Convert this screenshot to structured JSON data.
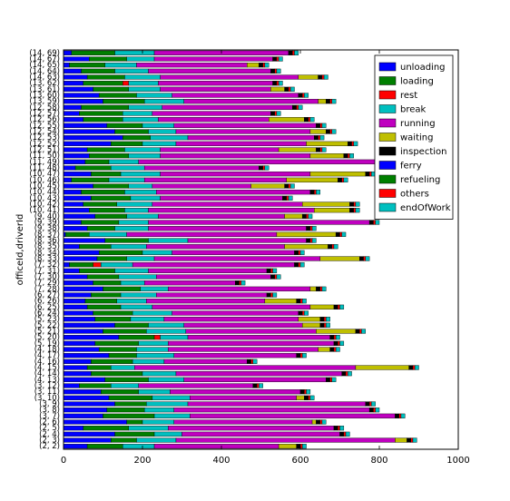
{
  "chart_data": {
    "type": "stacked-barh",
    "y_label": "officeId,driverId",
    "categories": [
      "(2, 2)",
      "(2, 3)",
      "(2, 4)",
      "(2, 5)",
      "(2, 6)",
      "(3, 7)",
      "(3, 8)",
      "(3, 9)",
      "(3, 10)",
      "(3, 11)",
      "(3, 12)",
      "(4, 13)",
      "(4, 14)",
      "(4, 15)",
      "(4, 16)",
      "(4, 17)",
      "(4, 18)",
      "(5, 19)",
      "(5, 20)",
      "(5, 21)",
      "(5, 22)",
      "(5, 23)",
      "(6, 24)",
      "(6, 25)",
      "(6, 26)",
      "(6, 27)",
      "(7, 28)",
      "(7, 29)",
      "(7, 30)",
      "(7, 31)",
      "(7, 32)",
      "(8, 33)",
      "(8, 34)",
      "(8, 35)",
      "(8, 36)",
      "(8, 37)",
      "(9, 38)",
      "(9, 39)",
      "(9, 40)",
      "(10, 41)",
      "(10, 42)",
      "(10, 43)",
      "(10, 44)",
      "(10, 45)",
      "(10, 46)",
      "(10, 47)",
      "(11, 48)",
      "(11, 49)",
      "(11, 50)",
      "(12, 51)",
      "(12, 52)",
      "(12, 53)",
      "(12, 54)",
      "(12, 55)",
      "(12, 56)",
      "(12, 57)",
      "(12, 58)",
      "(13, 59)",
      "(13, 60)",
      "(13, 61)",
      "(13, 62)",
      "(14, 63)",
      "(14, 64)",
      "(14, 65)",
      "(14, 67)",
      "(14, 69)"
    ],
    "xlim": [
      0,
      1000
    ],
    "xticks": [
      0,
      200,
      400,
      600,
      800,
      1000
    ],
    "legend": "upper right",
    "series": [
      {
        "name": "unloading",
        "color": "#0000ff",
        "values": [
          60,
          120,
          130,
          50,
          160,
          100,
          110,
          130,
          115,
          95,
          40,
          105,
          70,
          60,
          70,
          115,
          90,
          80,
          140,
          100,
          130,
          80,
          75,
          60,
          55,
          70,
          100,
          75,
          60,
          40,
          15,
          85,
          90,
          40,
          105,
          5,
          60,
          45,
          80,
          65,
          50,
          70,
          45,
          75,
          20,
          70,
          30,
          55,
          65,
          60,
          120,
          150,
          130,
          110,
          50,
          40,
          45,
          100,
          90,
          75,
          50,
          60,
          45,
          15,
          65,
          20
        ]
      },
      {
        "name": "loading",
        "color": "#007f00",
        "values": [
          90,
          65,
          100,
          115,
          40,
          130,
          95,
          80,
          110,
          95,
          80,
          110,
          130,
          60,
          105,
          70,
          95,
          110,
          90,
          110,
          85,
          90,
          100,
          85,
          80,
          75,
          95,
          70,
          80,
          90,
          60,
          75,
          110,
          80,
          110,
          60,
          70,
          95,
          80,
          90,
          85,
          100,
          110,
          90,
          95,
          75,
          90,
          60,
          100,
          95,
          80,
          70,
          85,
          90,
          100,
          110,
          120,
          105,
          95,
          90,
          100,
          95,
          85,
          90,
          95,
          110
        ]
      },
      {
        "name": "rest",
        "color": "#ff0000",
        "values": [
          0,
          0,
          0,
          0,
          0,
          0,
          0,
          0,
          0,
          0,
          0,
          0,
          0,
          0,
          0,
          0,
          0,
          0,
          15,
          0,
          0,
          0,
          0,
          0,
          0,
          0,
          0,
          0,
          0,
          0,
          20,
          0,
          0,
          0,
          0,
          0,
          0,
          0,
          0,
          0,
          0,
          0,
          0,
          0,
          0,
          0,
          0,
          0,
          0,
          0,
          0,
          0,
          0,
          0,
          0,
          0,
          0,
          0,
          0,
          0,
          15,
          0,
          0,
          0,
          0,
          0
        ]
      },
      {
        "name": "break",
        "color": "#00bfbf",
        "values": [
          80,
          100,
          70,
          100,
          80,
          90,
          75,
          105,
          95,
          80,
          70,
          90,
          85,
          60,
          80,
          95,
          80,
          75,
          70,
          100,
          90,
          85,
          100,
          80,
          75,
          90,
          70,
          60,
          95,
          85,
          80,
          70,
          75,
          90,
          100,
          95,
          85,
          75,
          80,
          60,
          90,
          75,
          80,
          60,
          90,
          100,
          85,
          75,
          80,
          90,
          85,
          95,
          70,
          80,
          90,
          75,
          85,
          100,
          90,
          80,
          75,
          90,
          85,
          80,
          70,
          100
        ]
      },
      {
        "name": "running",
        "color": "#bf00bf",
        "values": [
          315,
          555,
          400,
          420,
          350,
          520,
          495,
          450,
          270,
          330,
          290,
          360,
          420,
          560,
          210,
          310,
          380,
          420,
          360,
          330,
          300,
          340,
          320,
          400,
          300,
          280,
          360,
          230,
          290,
          300,
          410,
          420,
          310,
          350,
          300,
          380,
          400,
          560,
          320,
          420,
          380,
          310,
          390,
          250,
          360,
          380,
          290,
          600,
          380,
          300,
          330,
          320,
          340,
          360,
          280,
          300,
          330,
          340,
          320,
          280,
          290,
          350,
          310,
          280,
          300,
          340
        ]
      },
      {
        "name": "waiting",
        "color": "#bfbf00",
        "values": [
          45,
          30,
          0,
          0,
          10,
          0,
          0,
          0,
          20,
          0,
          0,
          0,
          0,
          135,
          0,
          0,
          30,
          0,
          0,
          100,
          45,
          55,
          0,
          60,
          80,
          0,
          15,
          0,
          0,
          0,
          0,
          100,
          0,
          110,
          0,
          150,
          0,
          0,
          45,
          90,
          120,
          0,
          0,
          85,
          130,
          140,
          0,
          0,
          85,
          95,
          105,
          0,
          40,
          0,
          90,
          0,
          0,
          20,
          0,
          35,
          0,
          50,
          0,
          30,
          0,
          0
        ]
      },
      {
        "name": "inspection",
        "color": "#000000",
        "values": [
          10,
          10,
          10,
          10,
          10,
          10,
          10,
          10,
          10,
          10,
          10,
          10,
          10,
          10,
          10,
          10,
          10,
          10,
          10,
          10,
          10,
          10,
          10,
          10,
          10,
          10,
          10,
          10,
          10,
          10,
          10,
          10,
          10,
          10,
          10,
          10,
          10,
          10,
          10,
          10,
          10,
          10,
          10,
          10,
          10,
          10,
          10,
          10,
          10,
          10,
          10,
          10,
          10,
          10,
          10,
          10,
          10,
          10,
          10,
          10,
          10,
          10,
          10,
          10,
          10,
          10
        ]
      },
      {
        "name": "ferry",
        "color": "#0000ff",
        "values": [
          0,
          0,
          0,
          0,
          0,
          0,
          0,
          0,
          0,
          0,
          0,
          0,
          0,
          0,
          0,
          0,
          0,
          0,
          0,
          0,
          0,
          0,
          0,
          0,
          0,
          0,
          0,
          0,
          0,
          0,
          0,
          0,
          0,
          0,
          0,
          0,
          0,
          0,
          0,
          0,
          0,
          0,
          0,
          0,
          0,
          0,
          0,
          0,
          0,
          0,
          0,
          0,
          0,
          0,
          0,
          0,
          0,
          0,
          0,
          0,
          0,
          0,
          0,
          0,
          0,
          0
        ]
      },
      {
        "name": "refueling",
        "color": "#007f00",
        "values": [
          0,
          0,
          0,
          0,
          0,
          0,
          0,
          0,
          0,
          0,
          0,
          0,
          0,
          0,
          0,
          0,
          0,
          0,
          0,
          0,
          0,
          0,
          0,
          0,
          0,
          0,
          0,
          0,
          0,
          0,
          0,
          0,
          0,
          0,
          0,
          0,
          0,
          0,
          0,
          0,
          0,
          0,
          0,
          0,
          0,
          0,
          0,
          0,
          0,
          0,
          0,
          0,
          0,
          0,
          0,
          0,
          0,
          0,
          0,
          0,
          0,
          0,
          0,
          0,
          0,
          0
        ]
      },
      {
        "name": "others",
        "color": "#ff0000",
        "values": [
          5,
          5,
          5,
          5,
          5,
          5,
          5,
          5,
          5,
          5,
          5,
          5,
          5,
          5,
          5,
          5,
          5,
          5,
          5,
          5,
          5,
          5,
          5,
          5,
          5,
          5,
          5,
          5,
          5,
          5,
          5,
          5,
          5,
          5,
          5,
          5,
          5,
          5,
          5,
          5,
          5,
          5,
          5,
          5,
          5,
          5,
          5,
          5,
          5,
          5,
          5,
          5,
          5,
          5,
          5,
          5,
          5,
          5,
          5,
          5,
          5,
          5,
          5,
          5,
          5,
          5
        ]
      },
      {
        "name": "endOfWork",
        "color": "#00bfbf",
        "values": [
          10,
          10,
          10,
          10,
          10,
          10,
          10,
          10,
          10,
          10,
          10,
          10,
          10,
          10,
          10,
          10,
          10,
          10,
          10,
          10,
          10,
          10,
          10,
          10,
          10,
          10,
          10,
          10,
          10,
          10,
          10,
          10,
          10,
          10,
          10,
          10,
          10,
          10,
          10,
          10,
          10,
          10,
          10,
          10,
          10,
          10,
          10,
          10,
          10,
          10,
          10,
          10,
          10,
          10,
          10,
          10,
          10,
          10,
          10,
          10,
          10,
          10,
          10,
          10,
          10,
          10
        ]
      }
    ]
  }
}
